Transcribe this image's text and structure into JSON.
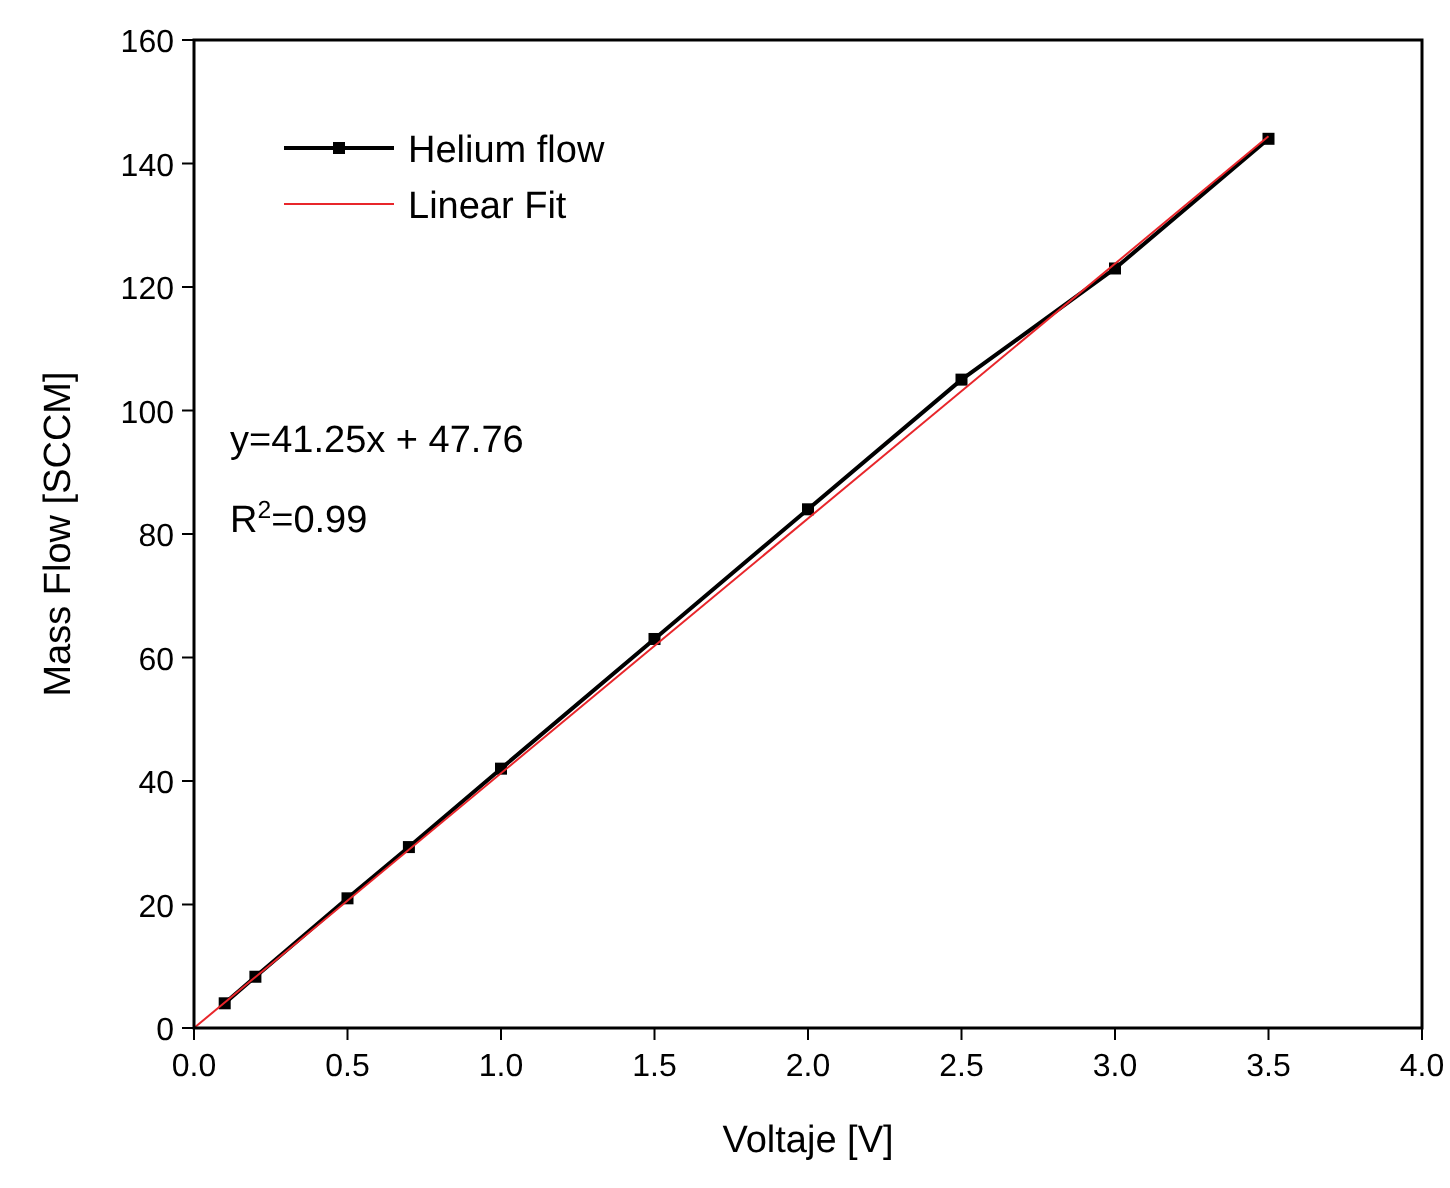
{
  "chart_data": {
    "type": "line",
    "xlabel": "Voltaje [V]",
    "ylabel": "Mass Flow [SCCM]",
    "xlim": [
      0,
      4
    ],
    "ylim": [
      0,
      160
    ],
    "xticks": [
      {
        "value": 0,
        "label": "0.0"
      },
      {
        "value": 0.5,
        "label": "0.5"
      },
      {
        "value": 1,
        "label": "1.0"
      },
      {
        "value": 1.5,
        "label": "1.5"
      },
      {
        "value": 2,
        "label": "2.0"
      },
      {
        "value": 2.5,
        "label": "2.5"
      },
      {
        "value": 3,
        "label": "3.0"
      },
      {
        "value": 3.5,
        "label": "3.5"
      },
      {
        "value": 4,
        "label": "4.0"
      }
    ],
    "yticks": [
      0,
      20,
      40,
      60,
      80,
      100,
      120,
      140,
      160
    ],
    "legend": "top left",
    "grid": false,
    "annotations": [
      "y=41.25x + 47.76",
      "R$^{2}$=0.99"
    ],
    "series": [
      {
        "name": "Helium flow",
        "color": "#000000",
        "marker": "square",
        "x": [
          0.1,
          0.2,
          0.5,
          0.7,
          1.0,
          1.5,
          2.0,
          2.5,
          3.0,
          3.5
        ],
        "values": [
          4,
          8.3,
          21,
          29.3,
          42,
          63,
          84,
          105,
          123,
          144
        ]
      },
      {
        "name": "Linear Fit",
        "color": "#e8262b",
        "marker": "none",
        "x": [
          0,
          3.5
        ],
        "values": [
          0,
          144.4
        ]
      }
    ]
  }
}
